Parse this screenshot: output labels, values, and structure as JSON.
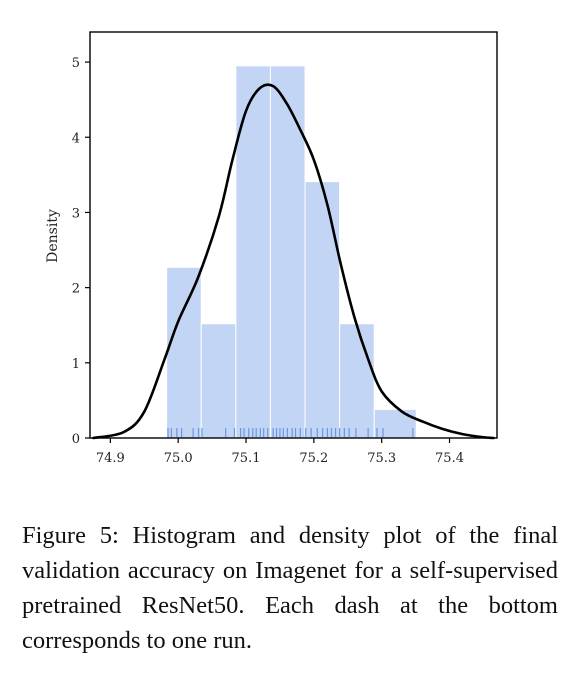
{
  "caption": "Figure 5: Histogram and density plot of the final validation accuracy on Imagenet for a self-supervised pretrained ResNet50. Each dash at the bottom corresponds to one run.",
  "colors": {
    "bar_fill": "#c2d5f5",
    "bar_edge": "#ffffff",
    "rug": "#6d96e0",
    "kde": "#000000",
    "axis": "#000000"
  },
  "chart_data": {
    "type": "bar",
    "title": "",
    "xlabel": "",
    "ylabel": "Density",
    "xlim": [
      74.87,
      75.47
    ],
    "ylim": [
      0,
      5.4
    ],
    "x_ticks": [
      "74.9",
      "75.0",
      "75.1",
      "75.2",
      "75.3",
      "75.4"
    ],
    "y_ticks": [
      "0",
      "1",
      "2",
      "3",
      "4",
      "5"
    ],
    "grid": false,
    "histogram": {
      "bin_edges": [
        74.983,
        75.034,
        75.085,
        75.136,
        75.187,
        75.238,
        75.289,
        75.351
      ],
      "density": [
        2.27,
        1.52,
        4.95,
        4.95,
        3.41,
        1.52,
        0.38
      ]
    },
    "density_curve": {
      "x": [
        74.875,
        74.92,
        74.95,
        74.98,
        75.0,
        75.03,
        75.06,
        75.08,
        75.1,
        75.12,
        75.14,
        75.16,
        75.18,
        75.2,
        75.22,
        75.24,
        75.26,
        75.28,
        75.3,
        75.33,
        75.36,
        75.39,
        75.42,
        75.45,
        75.465
      ],
      "y": [
        0.0,
        0.08,
        0.35,
        1.05,
        1.55,
        2.15,
        2.95,
        3.7,
        4.35,
        4.65,
        4.68,
        4.45,
        4.1,
        3.7,
        3.1,
        2.3,
        1.6,
        1.05,
        0.62,
        0.35,
        0.22,
        0.12,
        0.05,
        0.01,
        0.0
      ]
    },
    "rug": [
      74.985,
      74.99,
      74.998,
      75.005,
      75.022,
      75.03,
      75.035,
      75.07,
      75.083,
      75.092,
      75.097,
      75.104,
      75.11,
      75.115,
      75.121,
      75.126,
      75.132,
      75.14,
      75.145,
      75.15,
      75.155,
      75.161,
      75.168,
      75.173,
      75.18,
      75.188,
      75.196,
      75.205,
      75.213,
      75.22,
      75.226,
      75.232,
      75.238,
      75.245,
      75.252,
      75.262,
      75.28,
      75.293,
      75.302,
      75.346
    ]
  }
}
